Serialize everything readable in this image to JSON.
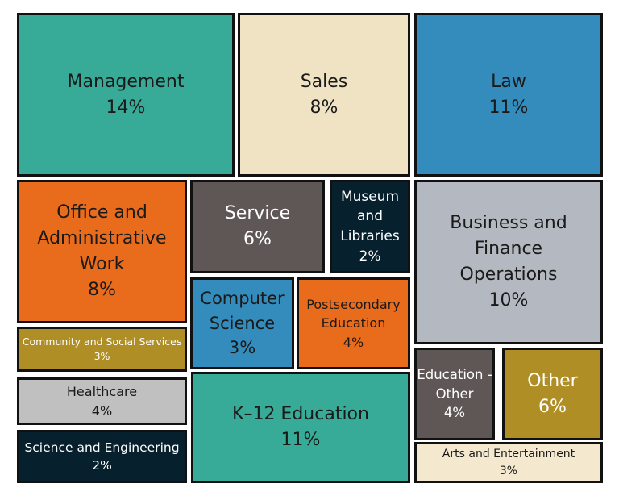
{
  "chart_data": {
    "type": "treemap",
    "unit": "%",
    "items": [
      {
        "label": "Management",
        "value": 14,
        "value_label": "14%",
        "color": "#38ab98"
      },
      {
        "label": "Sales",
        "value": 8,
        "value_label": "8%",
        "color": "#efe3c3"
      },
      {
        "label": "Law",
        "value": 11,
        "value_label": "11%",
        "color": "#348cbc"
      },
      {
        "label": "Office and Administrative Work",
        "value": 8,
        "value_label": "8%",
        "color": "#e86c1c"
      },
      {
        "label": "Service",
        "value": 6,
        "value_label": "6%",
        "color": "#5f5756"
      },
      {
        "label": "Museum and Libraries",
        "value": 2,
        "value_label": "2%",
        "color": "#07202d"
      },
      {
        "label": "Business and Finance Operations",
        "value": 10,
        "value_label": "10%",
        "color": "#b4b9c1"
      },
      {
        "label": "Computer Science",
        "value": 3,
        "value_label": "3%",
        "color": "#348cbc"
      },
      {
        "label": "Postsecondary Education",
        "value": 4,
        "value_label": "4%",
        "color": "#e86c1c"
      },
      {
        "label": "Community and Social Services",
        "value": 3,
        "value_label": "3%",
        "color": "#af8e26"
      },
      {
        "label": "Healthcare",
        "value": 4,
        "value_label": "4%",
        "color": "#c0c0c0"
      },
      {
        "label": "Science and Engineering",
        "value": 2,
        "value_label": "2%",
        "color": "#07202d"
      },
      {
        "label": "K–12 Education",
        "value": 11,
        "value_label": "11%",
        "color": "#38ab98"
      },
      {
        "label": "Education -Other",
        "value": 4,
        "value_label": "4%",
        "color": "#5f5756"
      },
      {
        "label": "Other",
        "value": 6,
        "value_label": "6%",
        "color": "#af8e26"
      },
      {
        "label": "Arts and Entertainment",
        "value": 3,
        "value_label": "3%",
        "color": "#f4e9cf"
      }
    ]
  }
}
